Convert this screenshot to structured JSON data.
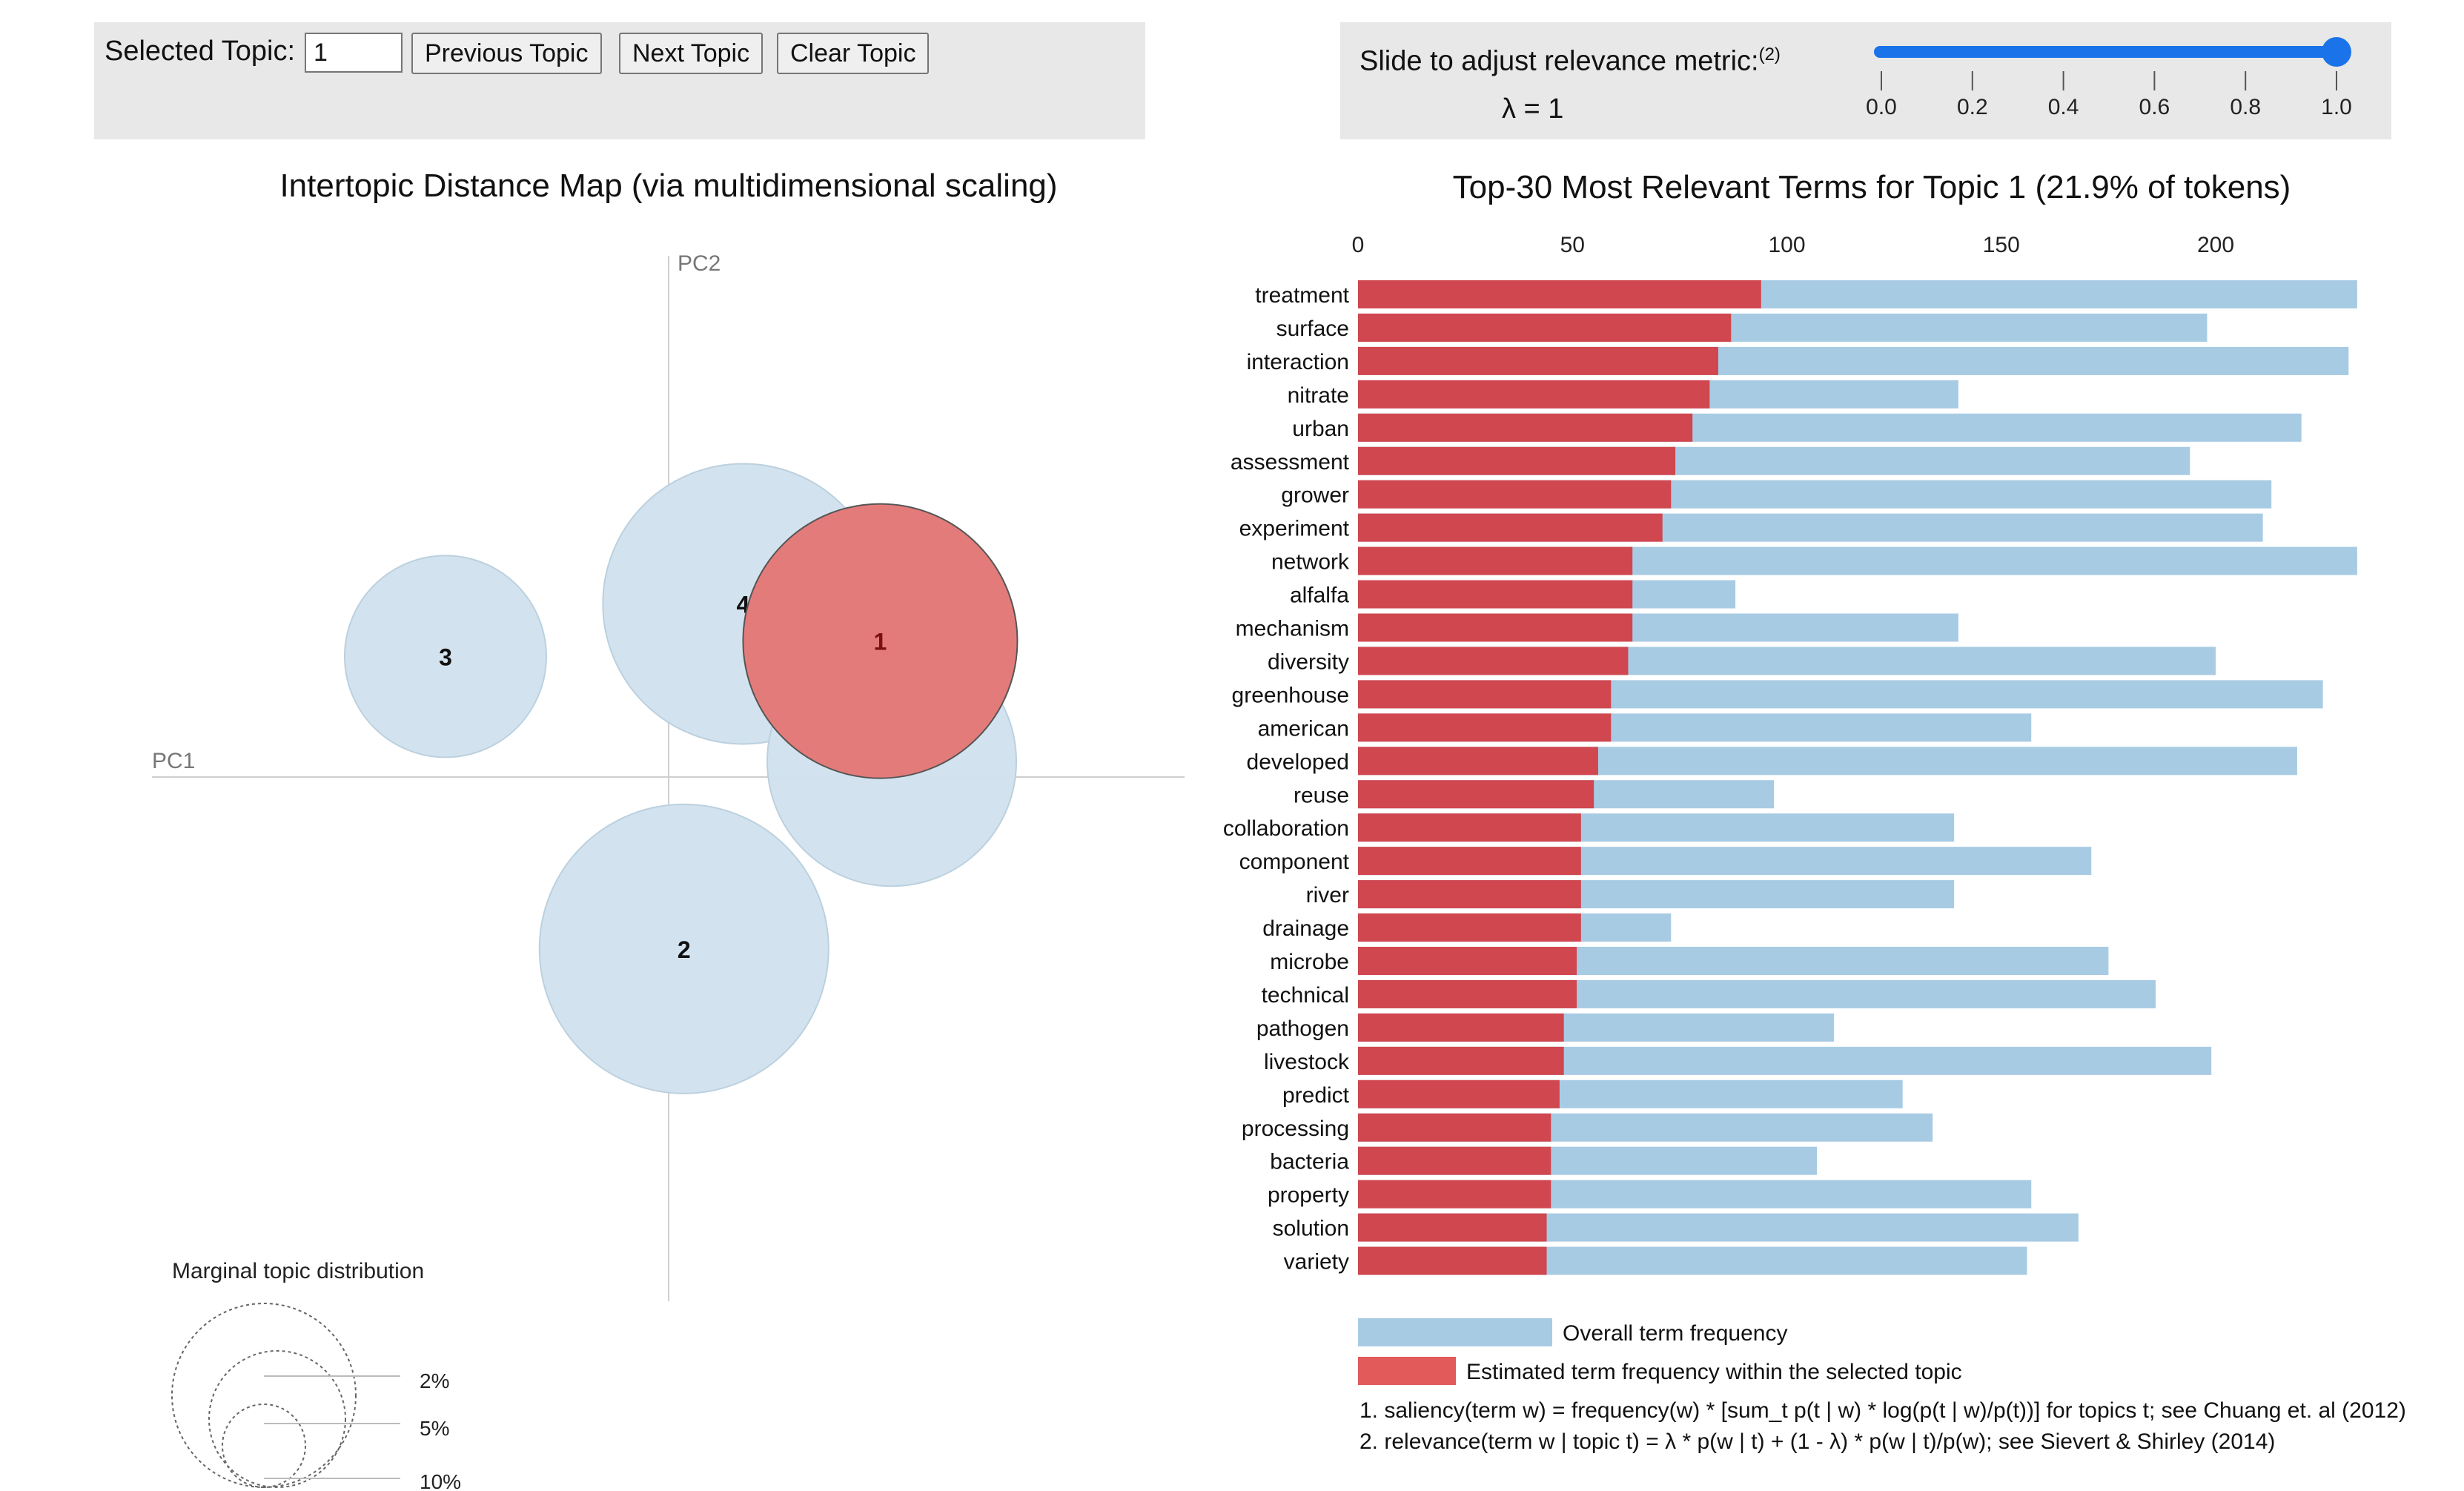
{
  "controls": {
    "selected_topic_label": "Selected Topic:",
    "selected_topic_value": "1",
    "prev_label": "Previous Topic",
    "next_label": "Next Topic",
    "clear_label": "Clear Topic",
    "slider_label": "Slide to adjust relevance metric:",
    "slider_footnote": "(2)",
    "lambda_text": "λ = 1",
    "lambda_value": 1,
    "slider_ticks": [
      "0.0",
      "0.2",
      "0.4",
      "0.6",
      "0.8",
      "1.0"
    ],
    "slider_color": "#1a73e8"
  },
  "chart_data": [
    {
      "type": "scatter",
      "title": "Intertopic Distance Map (via multidimensional scaling)",
      "xlabel": "PC1",
      "ylabel": "PC2",
      "topics": [
        {
          "id": "1",
          "x": 0.165,
          "y": 0.106,
          "selected": true
        },
        {
          "id": "2",
          "x": 0.012,
          "y": -0.134,
          "selected": false
        },
        {
          "id": "3",
          "x": -0.174,
          "y": 0.094,
          "selected": false
        },
        {
          "id": "4",
          "x": 0.058,
          "y": 0.135,
          "selected": false
        },
        {
          "id": "5",
          "x": 0.174,
          "y": 0.012,
          "selected": false
        }
      ],
      "xlim": [
        -0.2,
        0.2
      ],
      "ylim": [
        -0.2,
        0.2
      ],
      "marginal_title": "Marginal topic distribution",
      "marginal_labels": [
        "2%",
        "5%",
        "10%"
      ],
      "colors": {
        "selected": "#e47b7b",
        "unselected": "#d1e2ef"
      }
    },
    {
      "type": "bar",
      "title": "Top-30 Most Relevant Terms for Topic 1 (21.9% of tokens)",
      "xticks": [
        "0",
        "50",
        "100",
        "150",
        "200"
      ],
      "xlim": [
        0,
        240
      ],
      "terms": [
        "treatment",
        "surface",
        "interaction",
        "nitrate",
        "urban",
        "assessment",
        "grower",
        "experiment",
        "network",
        "alfalfa",
        "mechanism",
        "diversity",
        "greenhouse",
        "american",
        "developed",
        "reuse",
        "collaboration",
        "component",
        "river",
        "drainage",
        "microbe",
        "technical",
        "pathogen",
        "livestock",
        "predict",
        "processing",
        "bacteria",
        "property",
        "solution",
        "variety"
      ],
      "series": [
        {
          "name": "Overall term frequency",
          "color": "#a8cbe4",
          "values": [
            233,
            198,
            231,
            140,
            220,
            194,
            213,
            211,
            233,
            88,
            140,
            200,
            225,
            157,
            219,
            97,
            139,
            171,
            139,
            73,
            175,
            186,
            111,
            199,
            127,
            134,
            107,
            157,
            168,
            156
          ]
        },
        {
          "name": "Estimated term frequency within the selected topic",
          "color": "#d0474f",
          "values": [
            94,
            87,
            84,
            82,
            78,
            74,
            73,
            71,
            64,
            64,
            64,
            63,
            59,
            59,
            56,
            55,
            52,
            52,
            52,
            52,
            51,
            51,
            48,
            48,
            47,
            45,
            45,
            45,
            44,
            44
          ]
        }
      ],
      "legend": [
        "Overall term frequency",
        "Estimated term frequency within the selected topic"
      ]
    }
  ],
  "footnotes": [
    "1. saliency(term w) = frequency(w) * [sum_t p(t | w) * log(p(t | w)/p(t))] for topics t; see Chuang et. al (2012)",
    "2. relevance(term w | topic t) = λ * p(w | t) + (1 - λ) * p(w | t)/p(w); see Sievert & Shirley (2014)"
  ]
}
